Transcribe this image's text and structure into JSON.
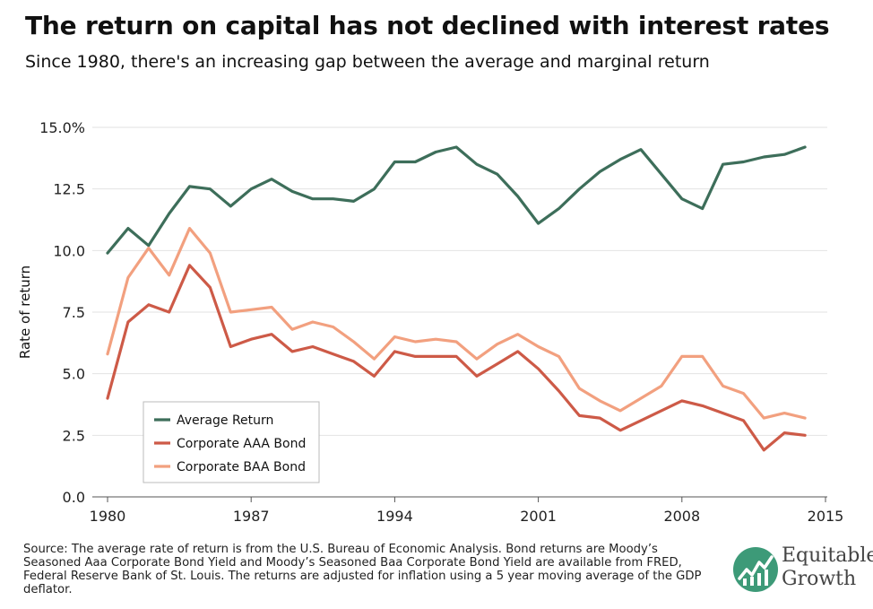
{
  "title": "The return on capital has not declined with interest rates",
  "subtitle": "Since 1980, there's an increasing gap between the average and marginal return",
  "source": "Source: The average rate of return is from the U.S. Bureau of Economic Analysis. Bond returns are Moody’s Seasoned Aaa Corporate Bond Yield and Moody’s Seasoned Baa Corporate Bond Yield are available from FRED, Federal Reserve Bank of St. Louis. The returns are adjusted for inflation using a 5 year moving average of the GDP deflator.",
  "logo": {
    "line1": "Equitable",
    "line2": "Growth",
    "icon": "growth-chart-icon"
  },
  "chart_data": {
    "type": "line",
    "title": "The return on capital has not declined with interest rates",
    "subtitle": "Since 1980, there's an increasing gap between the average and marginal return",
    "xlabel": "",
    "ylabel": "Rate of return",
    "xlim": [
      1980,
      2015
    ],
    "ylim": [
      0,
      15
    ],
    "x_ticks": [
      "1980",
      "1987",
      "1994",
      "2001",
      "2008",
      "2015"
    ],
    "y_ticks": [
      "0.0",
      "2.5",
      "5.0",
      "7.5",
      "10.0",
      "12.5",
      "15.0%"
    ],
    "grid": "horizontal",
    "legend_position": "lower-left",
    "x": [
      1980,
      1981,
      1982,
      1983,
      1984,
      1985,
      1986,
      1987,
      1988,
      1989,
      1990,
      1991,
      1992,
      1993,
      1994,
      1995,
      1996,
      1997,
      1998,
      1999,
      2000,
      2001,
      2002,
      2003,
      2004,
      2005,
      2006,
      2007,
      2008,
      2009,
      2010,
      2011,
      2012,
      2013,
      2014
    ],
    "series": [
      {
        "name": "Average Return",
        "color": "#3d6e5a",
        "values": [
          9.9,
          10.9,
          10.2,
          11.5,
          12.6,
          12.5,
          11.8,
          12.5,
          12.9,
          12.4,
          12.1,
          12.1,
          12.0,
          12.5,
          13.6,
          13.6,
          14.0,
          14.2,
          13.5,
          13.1,
          12.2,
          11.1,
          11.7,
          12.5,
          13.2,
          13.7,
          14.1,
          13.1,
          12.1,
          11.7,
          13.5,
          13.6,
          13.8,
          13.9,
          14.2
        ]
      },
      {
        "name": "Corporate AAA Bond",
        "color": "#cd5a47",
        "values": [
          4.0,
          7.1,
          7.8,
          7.5,
          9.4,
          8.5,
          6.1,
          6.4,
          6.6,
          5.9,
          6.1,
          5.8,
          5.5,
          4.9,
          5.9,
          5.7,
          5.7,
          5.7,
          4.9,
          5.4,
          5.9,
          5.2,
          4.3,
          3.3,
          3.2,
          2.7,
          3.1,
          3.5,
          3.9,
          3.7,
          3.4,
          3.1,
          1.9,
          2.6,
          2.5
        ]
      },
      {
        "name": "Corporate BAA Bond",
        "color": "#f2a07f",
        "values": [
          5.8,
          8.9,
          10.1,
          9.0,
          10.9,
          9.9,
          7.5,
          7.6,
          7.7,
          6.8,
          7.1,
          6.9,
          6.3,
          5.6,
          6.5,
          6.3,
          6.4,
          6.3,
          5.6,
          6.2,
          6.6,
          6.1,
          5.7,
          4.4,
          3.9,
          3.5,
          4.0,
          4.5,
          5.7,
          5.7,
          4.5,
          4.2,
          3.2,
          3.4,
          3.2
        ]
      }
    ]
  }
}
